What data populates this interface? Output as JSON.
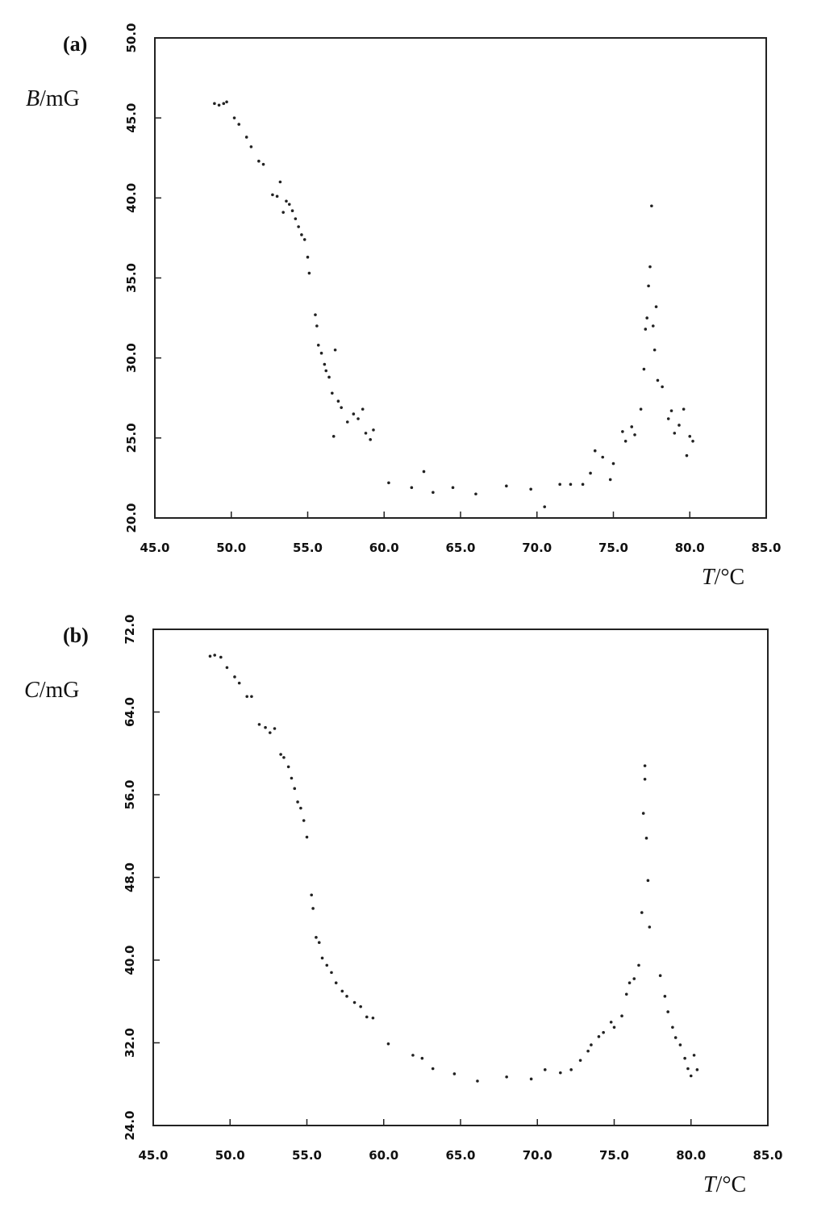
{
  "chart_data": [
    {
      "type": "scatter",
      "title": "(a)",
      "ylabel": {
        "symbol": "B",
        "unit": "/mG"
      },
      "xlabel": {
        "symbol": "T",
        "unit": "/°C"
      },
      "color": "#222222",
      "xlim": [
        45,
        85
      ],
      "ylim": [
        20,
        50
      ],
      "xticks": [
        {
          "value": 45,
          "label": "45.0"
        },
        {
          "value": 50,
          "label": "50.0"
        },
        {
          "value": 55,
          "label": "55.0"
        },
        {
          "value": 60,
          "label": "60.0"
        },
        {
          "value": 65,
          "label": "65.0"
        },
        {
          "value": 70,
          "label": "70.0"
        },
        {
          "value": 75,
          "label": "75.0"
        },
        {
          "value": 80,
          "label": "80.0"
        },
        {
          "value": 85,
          "label": "85.0"
        }
      ],
      "yticks": [
        {
          "value": 20,
          "label": "20.0"
        },
        {
          "value": 25,
          "label": "25.0"
        },
        {
          "value": 30,
          "label": "30.0"
        },
        {
          "value": 35,
          "label": "35.0"
        },
        {
          "value": 40,
          "label": "40.0"
        },
        {
          "value": 45,
          "label": "45.0"
        },
        {
          "value": 50,
          "label": "50.0"
        }
      ],
      "x": [
        48.9,
        49.2,
        49.5,
        49.7,
        50.2,
        50.5,
        51.0,
        51.3,
        51.8,
        52.1,
        52.7,
        53.0,
        53.2,
        53.4,
        53.6,
        53.8,
        54.0,
        54.2,
        54.4,
        54.6,
        54.8,
        55.0,
        55.1,
        55.5,
        55.6,
        55.7,
        55.9,
        56.1,
        56.2,
        56.4,
        56.6,
        56.8,
        56.7,
        57.0,
        57.2,
        57.6,
        58.0,
        58.3,
        58.6,
        58.8,
        59.1,
        59.3,
        60.3,
        61.8,
        62.6,
        63.2,
        64.5,
        66.0,
        68.0,
        69.6,
        70.5,
        71.5,
        72.2,
        73.0,
        73.5,
        73.8,
        74.3,
        74.8,
        75.0,
        75.6,
        75.8,
        76.2,
        76.4,
        76.8,
        77.0,
        77.1,
        77.2,
        77.3,
        77.4,
        77.5,
        77.6,
        77.7,
        77.8,
        77.9,
        78.2,
        78.6,
        78.8,
        79.0,
        79.3,
        79.6,
        79.8,
        80.0,
        80.2
      ],
      "values": [
        45.9,
        45.8,
        45.9,
        46.0,
        45.0,
        44.6,
        43.8,
        43.2,
        42.3,
        42.1,
        40.2,
        40.1,
        41.0,
        39.1,
        39.8,
        39.6,
        39.2,
        38.7,
        38.2,
        37.7,
        37.4,
        36.3,
        35.3,
        32.7,
        32.0,
        30.8,
        30.3,
        29.6,
        29.2,
        28.8,
        27.8,
        30.5,
        25.1,
        27.3,
        26.9,
        26.0,
        26.5,
        26.2,
        26.8,
        25.3,
        24.9,
        25.5,
        22.2,
        21.9,
        22.9,
        21.6,
        21.9,
        21.5,
        22.0,
        21.8,
        20.7,
        22.1,
        22.1,
        22.1,
        22.8,
        24.2,
        23.8,
        22.4,
        23.4,
        25.4,
        24.8,
        25.7,
        25.2,
        26.8,
        29.3,
        31.8,
        32.5,
        34.5,
        35.7,
        39.5,
        32.0,
        30.5,
        33.2,
        28.6,
        28.2,
        26.2,
        26.7,
        25.3,
        25.8,
        26.8,
        23.9,
        25.1,
        24.8
      ]
    },
    {
      "type": "scatter",
      "title": "(b)",
      "ylabel": {
        "symbol": "C",
        "unit": "/mG"
      },
      "xlabel": {
        "symbol": "T",
        "unit": "/°C"
      },
      "color": "#222222",
      "xlim": [
        45,
        85
      ],
      "ylim": [
        24,
        72
      ],
      "xticks": [
        {
          "value": 45,
          "label": "45.0"
        },
        {
          "value": 50,
          "label": "50.0"
        },
        {
          "value": 55,
          "label": "55.0"
        },
        {
          "value": 60,
          "label": "60.0"
        },
        {
          "value": 65,
          "label": "65.0"
        },
        {
          "value": 70,
          "label": "70.0"
        },
        {
          "value": 75,
          "label": "75.0"
        },
        {
          "value": 80,
          "label": "80.0"
        },
        {
          "value": 85,
          "label": "85.0"
        }
      ],
      "yticks": [
        {
          "value": 24,
          "label": "24.0"
        },
        {
          "value": 32,
          "label": "32.0"
        },
        {
          "value": 40,
          "label": "40.0"
        },
        {
          "value": 48,
          "label": "48.0"
        },
        {
          "value": 56,
          "label": "56.0"
        },
        {
          "value": 64,
          "label": "64.0"
        },
        {
          "value": 72,
          "label": "72.0"
        }
      ],
      "x": [
        48.7,
        49.0,
        49.4,
        49.8,
        50.3,
        50.6,
        51.1,
        51.4,
        51.9,
        52.3,
        52.6,
        52.9,
        53.3,
        53.5,
        53.8,
        54.0,
        54.2,
        54.4,
        54.6,
        54.8,
        55.0,
        55.3,
        55.4,
        55.6,
        55.8,
        56.0,
        56.3,
        56.6,
        56.9,
        57.3,
        57.6,
        58.1,
        58.5,
        58.9,
        59.3,
        60.3,
        61.9,
        62.5,
        63.2,
        64.6,
        66.1,
        68.0,
        69.6,
        70.5,
        71.5,
        72.2,
        72.8,
        73.3,
        73.5,
        74.0,
        74.3,
        74.8,
        75.0,
        75.5,
        75.8,
        76.0,
        76.3,
        76.6,
        76.8,
        77.0,
        77.0,
        76.9,
        77.1,
        77.2,
        77.3,
        78.0,
        78.3,
        78.5,
        78.8,
        79.0,
        79.3,
        79.6,
        79.8,
        80.0,
        80.2,
        80.4
      ],
      "values": [
        69.4,
        69.5,
        69.3,
        68.3,
        67.4,
        66.8,
        65.5,
        65.5,
        62.8,
        62.5,
        62.0,
        62.4,
        59.9,
        59.6,
        58.7,
        57.6,
        56.6,
        55.3,
        54.7,
        53.5,
        51.9,
        46.3,
        45.0,
        42.2,
        41.7,
        40.2,
        39.5,
        38.8,
        37.8,
        37.0,
        36.5,
        35.9,
        35.5,
        34.5,
        34.4,
        31.9,
        30.8,
        30.5,
        29.5,
        29.0,
        28.3,
        28.7,
        28.5,
        29.4,
        29.1,
        29.4,
        30.3,
        31.2,
        31.8,
        32.6,
        33.0,
        34.0,
        33.5,
        34.6,
        36.7,
        37.8,
        38.2,
        39.5,
        44.6,
        58.8,
        57.5,
        54.2,
        51.8,
        47.7,
        43.2,
        38.5,
        36.5,
        35.0,
        33.5,
        32.5,
        31.8,
        30.5,
        29.5,
        28.8,
        30.8,
        29.4
      ]
    }
  ]
}
